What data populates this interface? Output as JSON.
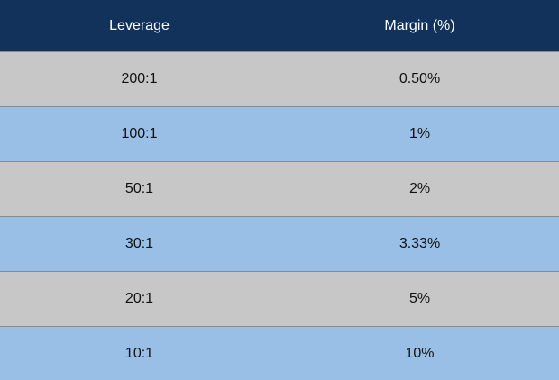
{
  "table": {
    "headers": [
      "Leverage",
      "Margin (%)"
    ],
    "rows": [
      {
        "leverage": "200:1",
        "margin": "0.50%"
      },
      {
        "leverage": "100:1",
        "margin": "1%"
      },
      {
        "leverage": "50:1",
        "margin": "2%"
      },
      {
        "leverage": "30:1",
        "margin": "3.33%"
      },
      {
        "leverage": "20:1",
        "margin": "5%"
      },
      {
        "leverage": "10:1",
        "margin": "10%"
      }
    ]
  },
  "colors": {
    "header_bg": "#12325c",
    "header_text": "#ffffff",
    "row_gray": "#c7c7c7",
    "row_blue": "#99bfe6",
    "divider": "#8a8a8a"
  }
}
